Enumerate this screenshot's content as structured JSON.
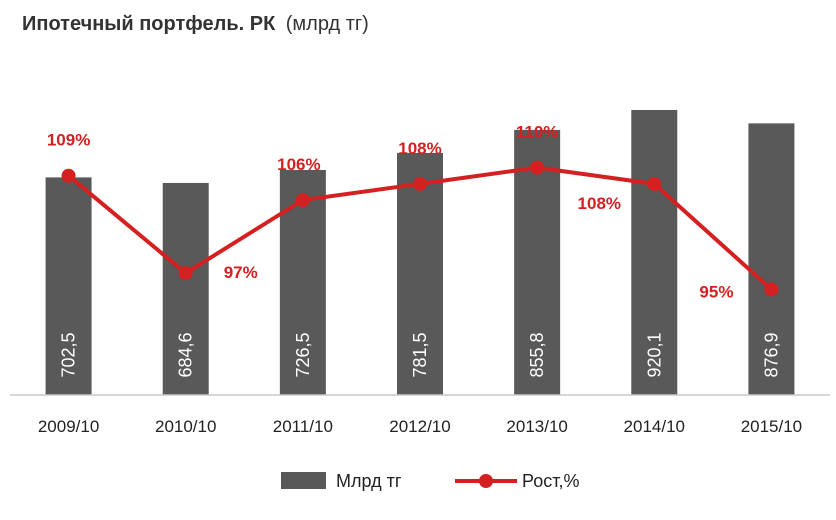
{
  "chart_data": {
    "type": "bar",
    "title": "Ипотечный  портфель. РК",
    "title_unit": "(млрд тг)",
    "categories": [
      "2009/10",
      "2010/10",
      "2011/10",
      "2012/10",
      "2013/10",
      "2014/10",
      "2015/10"
    ],
    "series": [
      {
        "name": "Млрд тг",
        "type": "bar",
        "color": "#595959",
        "values": [
          702.5,
          684.6,
          726.5,
          781.5,
          855.8,
          920.1,
          876.9
        ],
        "labels": [
          "702,5",
          "684,6",
          "726,5",
          "781,5",
          "855,8",
          "920,1",
          "876,9"
        ]
      },
      {
        "name": "Рост,%",
        "type": "line",
        "color": "#d42020",
        "values": [
          109,
          97,
          106,
          108,
          110,
          108,
          95
        ],
        "labels": [
          "109%",
          "97%",
          "106%",
          "108%",
          "110%",
          "108%",
          "95%"
        ]
      }
    ],
    "grid": false,
    "legend_position": "bottom"
  }
}
